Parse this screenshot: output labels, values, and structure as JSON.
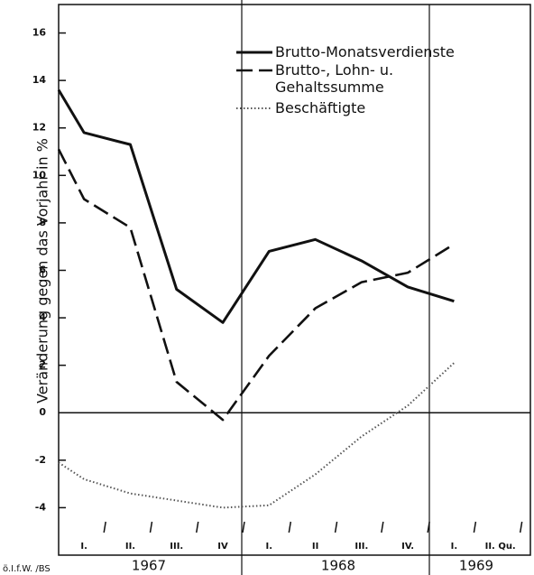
{
  "chart_data": {
    "type": "line",
    "y_label": "Veränderung gegen das Vorjahr in %",
    "x": [
      0.45,
      1,
      2,
      3,
      4,
      5,
      6,
      7,
      8,
      9
    ],
    "series": [
      {
        "name": "Brutto-Monatsverdienste",
        "color": "#111111",
        "style": "solid",
        "values": [
          13.6,
          11.8,
          11.3,
          5.2,
          3.8,
          6.8,
          7.3,
          6.4,
          5.3,
          4.7
        ]
      },
      {
        "name": "Brutto-, Lohn- u. Gehaltssumme",
        "color": "#111111",
        "style": "dashed",
        "values": [
          11.1,
          9.0,
          7.8,
          1.3,
          -0.3,
          2.4,
          4.4,
          5.5,
          5.9,
          7.1
        ]
      },
      {
        "name": "Beschäftigte",
        "color": "#555555",
        "style": "dotted",
        "values": [
          -2.1,
          -2.8,
          -3.4,
          -3.7,
          -4.0,
          -3.9,
          -2.6,
          -1.0,
          0.3,
          2.1
        ]
      }
    ],
    "xlim": [
      0.45,
      10.65
    ],
    "xticks": [
      {
        "value": 1,
        "label": "I."
      },
      {
        "value": 2,
        "label": "II."
      },
      {
        "value": 3,
        "label": "III."
      },
      {
        "value": 4,
        "label": "IV"
      },
      {
        "value": 5,
        "label": "I."
      },
      {
        "value": 6,
        "label": "II"
      },
      {
        "value": 7,
        "label": "III."
      },
      {
        "value": 8,
        "label": "IV."
      },
      {
        "value": 9,
        "label": "I."
      },
      {
        "value": 10,
        "label": "II. Qu."
      }
    ],
    "years": [
      "1967",
      "1968",
      "1969"
    ],
    "source": "ö.I.f.W. /BS",
    "ylim": [
      -6,
      17.2
    ],
    "yticks": [
      -4,
      -2,
      0,
      2,
      4,
      6,
      8,
      10,
      12,
      14,
      16
    ],
    "zero_line": true
  }
}
